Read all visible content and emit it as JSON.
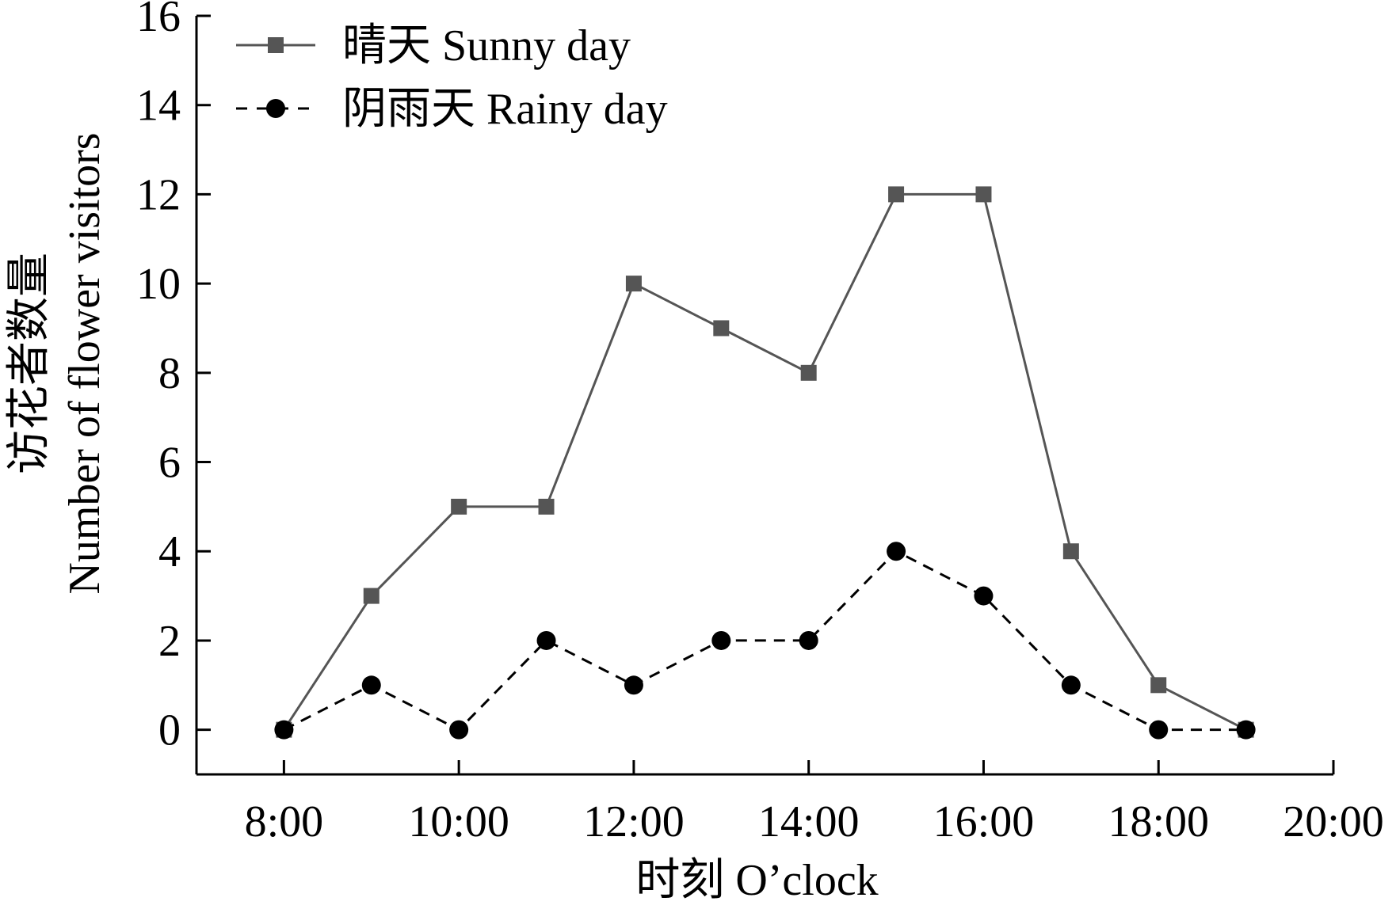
{
  "chart_data": {
    "type": "line",
    "x": [
      "8:00",
      "9:00",
      "10:00",
      "11:00",
      "12:00",
      "13:00",
      "14:00",
      "15:00",
      "16:00",
      "17:00",
      "18:00",
      "19:00"
    ],
    "x_numeric": [
      8,
      9,
      10,
      11,
      12,
      13,
      14,
      15,
      16,
      17,
      18,
      19
    ],
    "series": [
      {
        "name": "晴天 Sunny day",
        "values": [
          0,
          3,
          5,
          5,
          10,
          9,
          8,
          12,
          12,
          4,
          1,
          0
        ],
        "color": "#555555",
        "marker": "square",
        "line_style": "solid"
      },
      {
        "name": "阴雨天 Rainy day",
        "values": [
          0,
          1,
          0,
          2,
          1,
          2,
          2,
          4,
          3,
          1,
          0,
          0
        ],
        "color": "#000000",
        "marker": "circle",
        "line_style": "dashed"
      }
    ],
    "xlabel": "时刻 O’clock",
    "ylabel_cn": "访花者数量",
    "ylabel_en": "Number of flower visitors",
    "xlim": [
      7,
      20
    ],
    "ylim": [
      -1,
      16
    ],
    "x_ticks": [
      8,
      10,
      12,
      14,
      16,
      18,
      20
    ],
    "x_tick_labels": [
      "8:00",
      "10:00",
      "12:00",
      "14:00",
      "16:00",
      "18:00",
      "20:00"
    ],
    "y_ticks": [
      0,
      2,
      4,
      6,
      8,
      10,
      12,
      14,
      16
    ],
    "y_tick_labels": [
      "0",
      "2",
      "4",
      "6",
      "8",
      "10",
      "12",
      "14",
      "16"
    ],
    "grid": false,
    "legend_position": "top-left"
  }
}
